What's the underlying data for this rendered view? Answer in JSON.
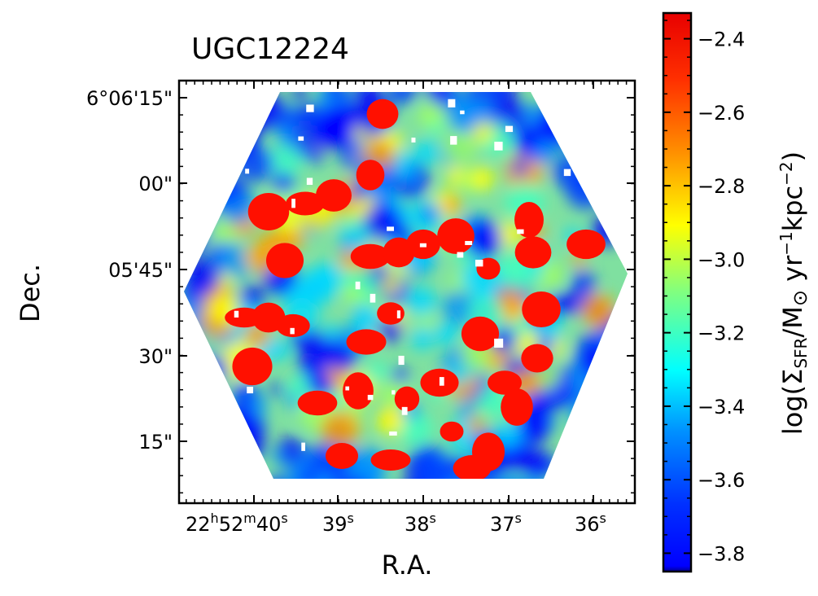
{
  "chart_data": {
    "type": "heatmap",
    "title": "UGC12224",
    "xlabel": "R.A.",
    "ylabel": "Dec.",
    "colorbar_label": "log(ΣSFR/M⊙yr−1kpc−2)",
    "colormap": "jet",
    "x_ticks": [
      {
        "h": "22",
        "m": "52",
        "s": "40"
      },
      {
        "s": "39"
      },
      {
        "s": "38"
      },
      {
        "s": "37"
      },
      {
        "s": "36"
      }
    ],
    "y_ticks": [
      "6°06'15\"",
      "00\"",
      "05'45\"",
      "30\"",
      "15\""
    ],
    "clim": [
      -3.85,
      -2.33
    ],
    "colorbar_ticks": [
      "−2.4",
      "−2.6",
      "−2.8",
      "−3.0",
      "−3.2",
      "−3.4",
      "−3.6",
      "−3.8"
    ],
    "colorbar_tick_values": [
      -2.4,
      -2.6,
      -2.8,
      -3.0,
      -3.2,
      -3.4,
      -3.6,
      -3.8
    ],
    "footprint": "hexagon",
    "map_note": "Σ_SFR map within a hexagonal footprint; values span about −3.85 to −2.35"
  }
}
